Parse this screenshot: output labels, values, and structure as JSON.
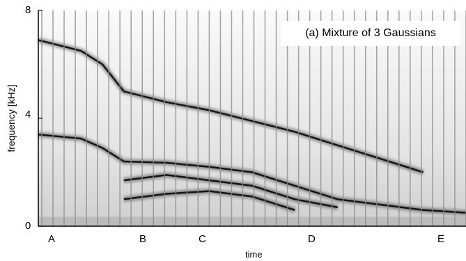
{
  "chart_data": {
    "type": "heatmap",
    "title": "(a) Mixture of 3 Gaussians",
    "xlabel": "time",
    "ylabel": "frequency [kHz]",
    "ylim": [
      0,
      8
    ],
    "y_ticks": [
      "0",
      "4",
      "8"
    ],
    "x_ticks": [
      "A",
      "B",
      "C",
      "D",
      "E"
    ],
    "colormap": "grayscale (dark = high energy)",
    "frame_boundaries": "vertical lines at regular intervals",
    "series": [
      {
        "values": [
          [
            0.0,
            3.4
          ],
          [
            0.1,
            3.25
          ],
          [
            0.15,
            2.9
          ],
          [
            0.2,
            2.4
          ],
          [
            0.3,
            2.35
          ],
          [
            0.4,
            2.2
          ],
          [
            0.5,
            2.0
          ],
          [
            0.6,
            1.5
          ],
          [
            0.7,
            1.0
          ],
          [
            0.8,
            0.8
          ],
          [
            0.9,
            0.6
          ],
          [
            1.0,
            0.5
          ]
        ]
      },
      {
        "values": [
          [
            0.0,
            6.9
          ],
          [
            0.1,
            6.5
          ],
          [
            0.15,
            6.0
          ],
          [
            0.2,
            5.0
          ],
          [
            0.3,
            4.6
          ],
          [
            0.4,
            4.3
          ],
          [
            0.5,
            3.9
          ],
          [
            0.6,
            3.5
          ],
          [
            0.7,
            3.0
          ],
          [
            0.8,
            2.5
          ],
          [
            0.9,
            2.0
          ]
        ]
      },
      {
        "values": [
          [
            0.2,
            1.7
          ],
          [
            0.3,
            1.9
          ],
          [
            0.4,
            1.7
          ],
          [
            0.5,
            1.5
          ],
          [
            0.6,
            1.0
          ],
          [
            0.7,
            0.7
          ]
        ]
      },
      {
        "values": [
          [
            0.2,
            1.0
          ],
          [
            0.3,
            1.2
          ],
          [
            0.4,
            1.3
          ],
          [
            0.5,
            1.1
          ],
          [
            0.6,
            0.6
          ]
        ]
      }
    ]
  }
}
